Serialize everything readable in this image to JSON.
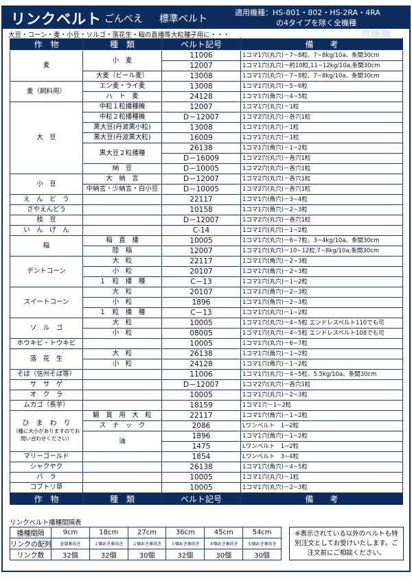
{
  "header": {
    "brand": "リンクベルト",
    "name": "ごんべえ",
    "type": "標準ベルト",
    "machines_line1": "適用機種：HS-801・802・HS-2RA・4RA",
    "machines_line2": "の4タイプを除く全機種"
  },
  "subtitle": "大豆・コーン・麦・小豆・ソルゴ・落花生・稲の直播等大粒種子用に・・・",
  "watermark": "貫援隊",
  "columns": [
    "作　物",
    "種　類",
    "ベルト記号",
    "備　　考"
  ],
  "colors": {
    "navy": "#0d2d5e"
  },
  "crops": [
    {
      "crop": "麦",
      "varieties": [
        {
          "name": "小　麦",
          "lines": [
            [
              "11006",
              "1コマ1穴(丸穴)－7~8粒、7~8kg/10a、条間30cm"
            ],
            [
              "12007",
              "1コマ1穴(丸穴)－約10粒,11~12kg/10a,条間30cm"
            ]
          ]
        },
        {
          "name": "大麦（ビール麦）",
          "lines": [
            [
              "13008",
              "1コマ1穴(丸穴)－7~8粒、7~8kg/10a、条間30cm"
            ]
          ]
        }
      ]
    },
    {
      "crop": "麦（飼料用）",
      "varieties": [
        {
          "name": "エン麦・ライ麦",
          "lines": [
            [
              "13008",
              "1コマ1穴(丸穴)－5~6粒"
            ]
          ]
        },
        {
          "name": "ハ　ト　麦",
          "lines": [
            [
              "24128",
              "1コマ1穴(角穴)－4~5粒"
            ]
          ]
        }
      ]
    },
    {
      "crop": "大　豆",
      "varieties": [
        {
          "name": "中粒１粒播種機",
          "lines": [
            [
              "12007",
              "1コマ1穴(丸穴)－1粒"
            ]
          ]
        },
        {
          "name": "中粒２粒播種機",
          "lines": [
            [
              "D－12007",
              "1コマ2穴(丸穴)－各穴1粒"
            ]
          ]
        },
        {
          "name": "黒大豆(丹波黒小粒)",
          "lines": [
            [
              "13008",
              "1コマ1穴(丸穴)－1粒"
            ]
          ]
        },
        {
          "name": "黒大豆(丹波黒大粒)",
          "lines": [
            [
              "16009",
              "1コマ1穴(丸穴)－1粒"
            ]
          ]
        },
        {
          "name": "黒大豆２粒播種",
          "lines": [
            [
              "26138",
              "1コマ1穴(角穴)－1~2粒"
            ],
            [
              "D－16009",
              "1コマ2穴(丸穴)－各穴1粒"
            ]
          ]
        },
        {
          "name": "納　豆",
          "lines": [
            [
              "D－10005",
              "1コマ2穴(丸穴)－各穴1粒"
            ]
          ]
        }
      ]
    },
    {
      "crop": "小　豆",
      "varieties": [
        {
          "name": "大　納　言",
          "lines": [
            [
              "D－12007",
              "1コマ2穴(丸穴)－各穴1粒"
            ]
          ]
        },
        {
          "name": "中納言・少納言・白小豆",
          "lines": [
            [
              "D－10005",
              "1コマ2穴(丸穴)－各穴1粒"
            ]
          ]
        }
      ]
    },
    {
      "crop": "え　ん　ど　う",
      "varieties": [
        {
          "name": "",
          "lines": [
            [
              "22117",
              "1コマ1穴(角穴)－3~4粒"
            ]
          ]
        }
      ]
    },
    {
      "crop": "さやえんどう",
      "varieties": [
        {
          "name": "",
          "lines": [
            [
              "10158",
              "1コマ1穴(角穴)－2~3粒"
            ]
          ]
        }
      ]
    },
    {
      "crop": "枝　豆",
      "varieties": [
        {
          "name": "",
          "lines": [
            [
              "D－12007",
              "1コマ2穴(丸穴)－各穴1粒"
            ]
          ]
        }
      ]
    },
    {
      "crop": "い　ん　げ　ん",
      "varieties": [
        {
          "name": "",
          "lines": [
            [
              "C-14",
              "1コマ1穴(丸穴)－1~2粒"
            ]
          ]
        }
      ]
    },
    {
      "crop": "稲",
      "varieties": [
        {
          "name": "稲　直　播",
          "lines": [
            [
              "10005",
              "1コマ1穴(丸穴)－6~7粒、3~4kg/10a、条間30cm"
            ]
          ]
        },
        {
          "name": "陸　稲",
          "lines": [
            [
              "12007",
              "1コマ1穴(丸穴)－10~12粒,7~8kg/10a,条間30cm"
            ]
          ]
        }
      ]
    },
    {
      "crop": "デントコーン",
      "varieties": [
        {
          "name": "大　粒",
          "lines": [
            [
              "22117",
              "1コマ1穴(角穴)－2~3粒"
            ]
          ]
        },
        {
          "name": "小　粒",
          "lines": [
            [
              "20107",
              "1コマ1穴(角穴)－2~3粒"
            ]
          ]
        },
        {
          "name": "１　粒　播　種",
          "lines": [
            [
              "C－13",
              "1コマ1穴(丸穴)－1~2粒"
            ]
          ]
        }
      ]
    },
    {
      "crop": "スイートコーン",
      "varieties": [
        {
          "name": "大　粒",
          "lines": [
            [
              "20107",
              "1コマ1穴(角穴)－2~3粒"
            ]
          ]
        },
        {
          "name": "小　粒",
          "lines": [
            [
              "1896",
              "1コマ1穴(角穴)－2~3粒"
            ]
          ]
        },
        {
          "name": "１　粒　播　種",
          "lines": [
            [
              "C－13",
              "1コマ1穴(丸穴)－1~2粒"
            ]
          ]
        }
      ]
    },
    {
      "crop": "ソ　ル　ゴ",
      "varieties": [
        {
          "name": "大　粒",
          "lines": [
            [
              "10005",
              "1コマ1穴(丸穴)－4~5粒 エンドレスベルト110でも可"
            ]
          ]
        },
        {
          "name": "小　粒",
          "lines": [
            [
              "08005",
              "1コマ1穴(丸穴)－4~5粒 エンドレスベルト108でも可"
            ]
          ]
        }
      ]
    },
    {
      "crop": "ホウキビ・トウキビ",
      "varieties": [
        {
          "name": "",
          "lines": [
            [
              "10005",
              "1コマ1穴(丸穴)－6~7粒"
            ]
          ]
        }
      ]
    },
    {
      "crop": "落　花　生",
      "varieties": [
        {
          "name": "大　粒",
          "lines": [
            [
              "26138",
              "1コマ1穴(角穴)－1~2粒"
            ]
          ]
        },
        {
          "name": "小　粒",
          "lines": [
            [
              "24128",
              "1コマ1穴(角穴)－1~2粒"
            ]
          ]
        }
      ]
    },
    {
      "crop": "そば（信州そば等）",
      "varieties": [
        {
          "name": "",
          "lines": [
            [
              "11006",
              "1コマ1穴(丸穴)－4~5粒、5.5kg/10a、条間30cm"
            ]
          ]
        }
      ]
    },
    {
      "crop": "サ　サ　ゲ",
      "varieties": [
        {
          "name": "",
          "lines": [
            [
              "D－12007",
              "1コマ2穴(丸穴)－各穴1粒"
            ]
          ]
        }
      ]
    },
    {
      "crop": "オ　ク　ラ",
      "varieties": [
        {
          "name": "",
          "lines": [
            [
              "10005",
              "1コマ1穴(丸穴)－2~3粒"
            ]
          ]
        }
      ]
    },
    {
      "crop": "ムカゴ（長芋）",
      "varieties": [
        {
          "name": "",
          "lines": [
            [
              "18159",
              "1コマ1穴－1~2粒"
            ]
          ]
        }
      ]
    },
    {
      "crop": "ひ　ま　わ　り",
      "crop_note": "（種に大小がありますのでお問い合わせください）",
      "varieties": [
        {
          "name": "観　賞　用　大　粒",
          "lines": [
            [
              "22117",
              "1コマ1穴(角穴)－1~2粒"
            ]
          ]
        },
        {
          "name": "ス　ナ　ッ　ク",
          "lines": [
            [
              "2086",
              "Lワンベルト　1~2粒"
            ]
          ]
        },
        {
          "name": "油",
          "lines": [
            [
              "1896",
              "1コマ1穴(角穴)－1~2粒"
            ],
            [
              "1475",
              "Lワンベルト　1~2粒"
            ]
          ]
        }
      ]
    },
    {
      "crop": "マリーゴールド",
      "varieties": [
        {
          "name": "",
          "lines": [
            [
              "1854",
              "Lワンベルト　3~4粒"
            ]
          ]
        }
      ]
    },
    {
      "crop": "シャクヤク",
      "varieties": [
        {
          "name": "",
          "lines": [
            [
              "26138",
              "1コマ1穴(角穴)－4~5粒"
            ]
          ]
        }
      ]
    },
    {
      "crop": "バ　ラ",
      "varieties": [
        {
          "name": "",
          "lines": [
            [
              "10005",
              "1コマ1穴(丸穴)－1粒"
            ]
          ]
        }
      ]
    },
    {
      "crop": "コブトリ草",
      "varieties": [
        {
          "name": "",
          "lines": [
            [
              "10005",
              "1コマ1穴(丸穴)－2~3粒"
            ]
          ]
        }
      ]
    }
  ],
  "interval_table": {
    "title": "リンクベルト播種間隔表",
    "rows": [
      [
        "播種間隔",
        "9cm",
        "18cm",
        "27cm",
        "36cm",
        "45cm",
        "54cm"
      ],
      [
        "リンクの配列",
        "全部表向き",
        "１個おき表向き",
        "２個おき表向き",
        "３個おき表向き",
        "４個おき表向き",
        "５個おき表向き"
      ],
      [
        "リンク数",
        "32個",
        "32個",
        "30個",
        "32個",
        "30個",
        "30個"
      ]
    ]
  },
  "notice": "※表示されている以外のベルトも特別注文としてお受けいたします。ご注文前にご相談ください。"
}
